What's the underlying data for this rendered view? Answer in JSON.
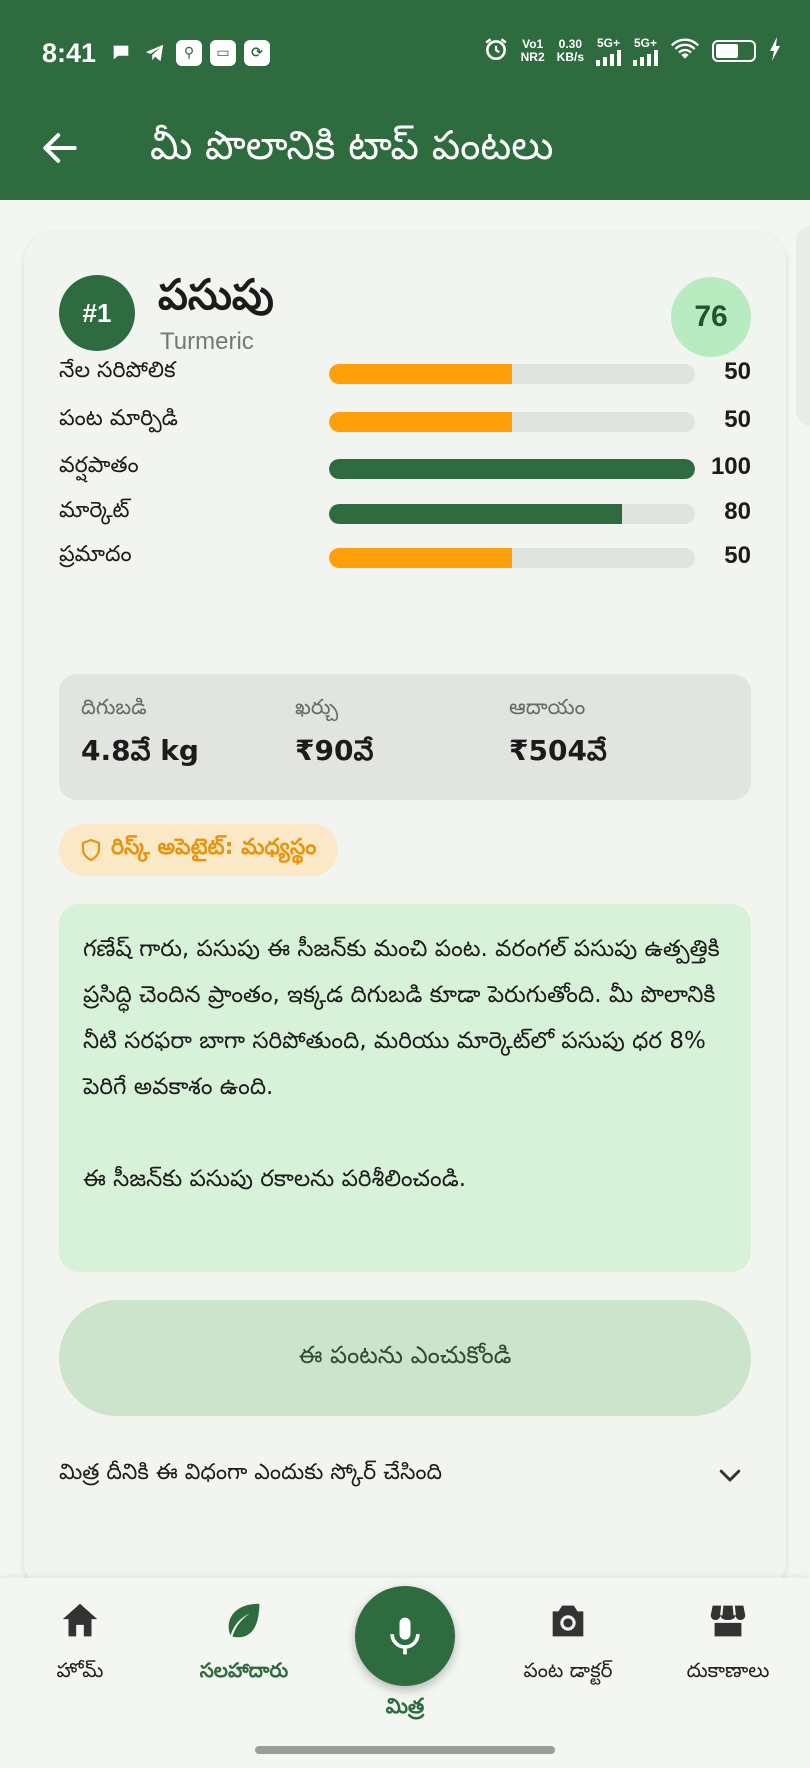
{
  "status_bar": {
    "time": "8:41",
    "net_top": "Vo1",
    "net_bottom": "NR2",
    "speed_top": "0.30",
    "speed_bottom": "KB/s",
    "sim1": "5G+",
    "sim2": "5G+",
    "battery_level": 0.6
  },
  "app_bar": {
    "title": "మీ పొలానికి టాప్ పంటలు"
  },
  "crop": {
    "rank": "#1",
    "name": "పసుపు",
    "name_en": "Turmeric",
    "score": "76",
    "metrics": [
      {
        "label": "నేల సరిపోలిక",
        "value": 50,
        "display": "50",
        "color": "#ff9f0a"
      },
      {
        "label": "పంట మార్పిడి",
        "value": 50,
        "display": "50",
        "color": "#ff9f0a"
      },
      {
        "label": "వర్షపాతం",
        "value": 100,
        "display": "100",
        "color": "#2e6b3f"
      },
      {
        "label": "మార్కెట్",
        "value": 80,
        "display": "80",
        "color": "#2e6b3f"
      },
      {
        "label": "ప్రమాదం",
        "value": 50,
        "display": "50",
        "color": "#ff9f0a"
      }
    ],
    "stats": [
      {
        "label": "దిగుబడి",
        "value": "4.8వే kg"
      },
      {
        "label": "ఖర్చు",
        "value": "₹90వే"
      },
      {
        "label": "ఆదాయం",
        "value": "₹504వే"
      }
    ],
    "risk_badge": "రిస్క్ అపెటైట్: మధ్యస్థం",
    "reason_para1": "గణేష్ గారు, పసుపు ఈ సీజన్‌కు మంచి పంట. వరంగల్ పసుపు ఉత్పత్తికి ప్రసిద్ధి చెందిన ప్రాంతం, ఇక్కడ దిగుబడి కూడా పెరుగుతోంది. మీ పొలానికి నీటి సరఫరా బాగా సరిపోతుంది, మరియు మార్కెట్‌లో పసుపు ధర 8% పెరిగే అవకాశం ఉంది.",
    "reason_para2": "ఈ సీజన్‌కు పసుపు రకాలను పరిశీలించండి.",
    "select_button": "ఈ పంటను ఎంచుకోండి",
    "why_label": "మిత్ర దీనికి ఈ విధంగా ఎందుకు స్కోర్ చేసింది"
  },
  "bottom_nav": {
    "home": "హోమ్",
    "advisor": "సలహాదారు",
    "mitra": "మిత్ర",
    "doctor": "పంట డాక్టర్",
    "shops": "దుకాణాలు"
  }
}
